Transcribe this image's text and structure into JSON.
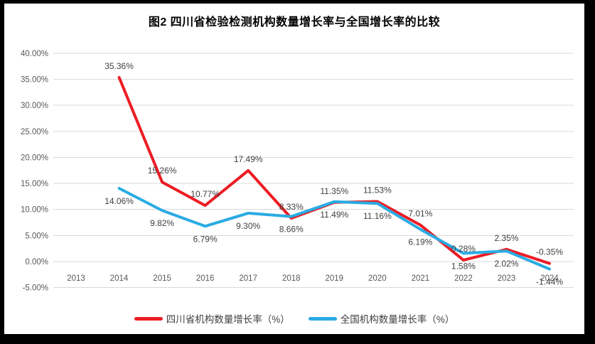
{
  "title": "图2   四川省检验检测机构数量增长率与全国增长率的比较",
  "chart_data": {
    "type": "line",
    "categories": [
      "2013",
      "2014",
      "2015",
      "2016",
      "2017",
      "2018",
      "2019",
      "2020",
      "2021",
      "2022",
      "2023",
      "2024"
    ],
    "series": [
      {
        "name": "四川省机构数量增长率（%）",
        "color": "#ed1c24",
        "label_position": "above",
        "values": [
          null,
          35.36,
          15.26,
          10.77,
          17.49,
          8.33,
          11.35,
          11.53,
          7.01,
          0.28,
          2.35,
          -0.35
        ],
        "labels": [
          "",
          "35.36%",
          "15.26%",
          "10.77%",
          "17.49%",
          "8.33%",
          "11.35%",
          "11.53%",
          "7.01%",
          "0.28%",
          "2.35%",
          "-0.35%"
        ]
      },
      {
        "name": "全国机构数量增长率（%）",
        "color": "#2aabe2",
        "label_position": "below",
        "values": [
          null,
          14.06,
          9.82,
          6.79,
          9.3,
          8.66,
          11.49,
          11.16,
          6.19,
          1.58,
          2.02,
          -1.44
        ],
        "labels": [
          "",
          "14.06%",
          "9.82%",
          "6.79%",
          "9.30%",
          "8.66%",
          "11.49%",
          "11.16%",
          "6.19%",
          "1.58%",
          "2.02%",
          "-1.44%"
        ]
      }
    ],
    "y_axis": {
      "ticks": [
        "40.00%",
        "35.00%",
        "30.00%",
        "25.00%",
        "20.00%",
        "15.00%",
        "10.00%",
        "5.00%",
        "0.00%",
        "-5.00%"
      ],
      "max": 40,
      "min": -5,
      "step": 5
    },
    "grid": true,
    "gridline_color": "#d9d9d9",
    "axis_text_color": "#595959",
    "data_label_color": "#404040",
    "legend_position": "bottom",
    "frame_color": "#000000",
    "background_color": "#ffffff"
  }
}
